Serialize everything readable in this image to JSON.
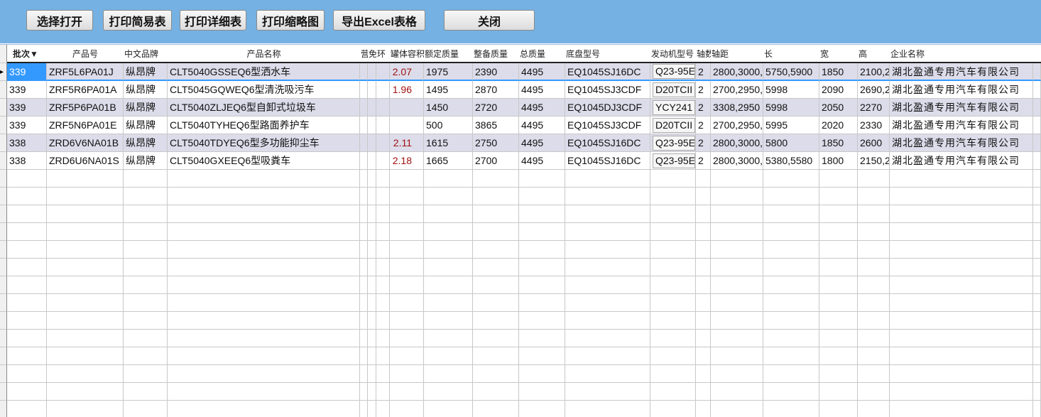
{
  "toolbar": {
    "buttons": [
      "选择打开",
      "打印简易表",
      "打印详细表",
      "打印缩略图",
      "导出Excel表格",
      "关闭"
    ]
  },
  "grid": {
    "columns": [
      "批次▼",
      "产品号",
      "中文品牌",
      "产品名称",
      "营",
      "免",
      "环",
      "罐体容积",
      "额定质量",
      "整备质量",
      "总质量",
      "底盘型号",
      "发动机型号",
      "轴数",
      "轴距",
      "长",
      "宽",
      "高",
      "企业名称",
      ""
    ],
    "rows": [
      [
        "339",
        "ZRF5L6PA01J",
        "纵昂牌",
        "CLT5040GSSEQ6型洒水车",
        "",
        "",
        "",
        "2.07",
        "1975",
        "2390",
        "4495",
        "EQ1045SJ16DC",
        "Q23-95E",
        "2",
        "2800,3000,",
        "5750,5900",
        "1850",
        "2100,2",
        "湖北盈通专用汽车有限公司",
        ""
      ],
      [
        "339",
        "ZRF5R6PA01A",
        "纵昂牌",
        "CLT5045GQWEQ6型清洗吸污车",
        "",
        "",
        "",
        "1.96",
        "1495",
        "2870",
        "4495",
        "EQ1045SJ3CDF",
        "D20TCII",
        "2",
        "2700,2950,",
        "5998",
        "2090",
        "2690,2",
        "湖北盈通专用汽车有限公司",
        ""
      ],
      [
        "339",
        "ZRF5P6PA01B",
        "纵昂牌",
        "CLT5040ZLJEQ6型自卸式垃圾车",
        "",
        "",
        "",
        "",
        "1450",
        "2720",
        "4495",
        "EQ1045DJ3CDF",
        "YCY241",
        "2",
        "3308,2950",
        "5998",
        "2050",
        "2270",
        "湖北盈通专用汽车有限公司",
        ""
      ],
      [
        "339",
        "ZRF5N6PA01E",
        "纵昂牌",
        "CLT5040TYHEQ6型路面养护车",
        "",
        "",
        "",
        "",
        "500",
        "3865",
        "4495",
        "EQ1045SJ3CDF",
        "D20TCII",
        "2",
        "2700,2950,",
        "5995",
        "2020",
        "2330",
        "湖北盈通专用汽车有限公司",
        ""
      ],
      [
        "338",
        "ZRD6V6NA01B",
        "纵昂牌",
        "CLT5040TDYEQ6型多功能抑尘车",
        "",
        "",
        "",
        "2.11",
        "1615",
        "2750",
        "4495",
        "EQ1045SJ16DC",
        "Q23-95E",
        "2",
        "2800,3000,",
        "5800",
        "1850",
        "2600",
        "湖北盈通专用汽车有限公司",
        ""
      ],
      [
        "338",
        "ZRD6U6NA01S",
        "纵昂牌",
        "CLT5040GXEEQ6型吸粪车",
        "",
        "",
        "",
        "2.18",
        "1665",
        "2700",
        "4495",
        "EQ1045SJ16DC",
        "Q23-95E",
        "2",
        "2800,3000,",
        "5380,5580",
        "1800",
        "2150,2",
        "湖北盈通专用汽车有限公司",
        ""
      ]
    ]
  },
  "colors": {
    "toolbar": "#75b1e2",
    "alt_row": "#dcdcea",
    "selection": "#3399ff",
    "volume_text": "#a01010"
  }
}
